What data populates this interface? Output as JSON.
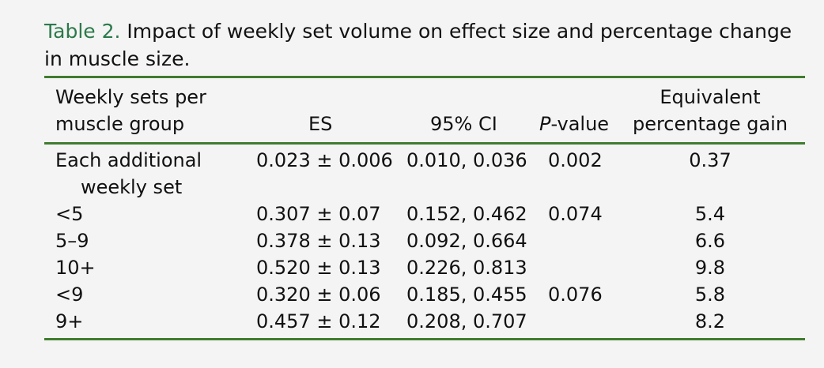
{
  "caption": {
    "label": "Table 2.",
    "text": "Impact of weekly set volume on effect size and percentage change in muscle size."
  },
  "header": {
    "col1_line1": "Weekly sets per",
    "col1_line2": "muscle group",
    "es": "ES",
    "ci": "95% CI",
    "p_italic": "P",
    "p_rest": "-value",
    "gain_line1": "Equivalent",
    "gain_line2": "percentage gain"
  },
  "rows": [
    {
      "group_line1": "Each additional",
      "group_line2": "weekly set",
      "es": "0.023 ± 0.006",
      "ci": "0.010, 0.036",
      "p": "0.002",
      "gain": "0.37"
    },
    {
      "group": "<5",
      "es": "0.307 ± 0.07",
      "ci": "0.152, 0.462",
      "p": "0.074",
      "gain": "5.4"
    },
    {
      "group": "5–9",
      "es": "0.378 ± 0.13",
      "ci": "0.092, 0.664",
      "p": "",
      "gain": "6.6"
    },
    {
      "group": "10+",
      "es": "0.520 ± 0.13",
      "ci": "0.226, 0.813",
      "p": "",
      "gain": "9.8"
    },
    {
      "group": "<9",
      "es": "0.320 ± 0.06",
      "ci": "0.185, 0.455",
      "p": "0.076",
      "gain": "5.8"
    },
    {
      "group": "9+",
      "es": "0.457 ± 0.12",
      "ci": "0.208, 0.707",
      "p": "",
      "gain": "8.2"
    }
  ],
  "colors": {
    "caption_label": "#2c7a4b",
    "rule": "#3f7d2e",
    "background": "#f4f4f4"
  }
}
